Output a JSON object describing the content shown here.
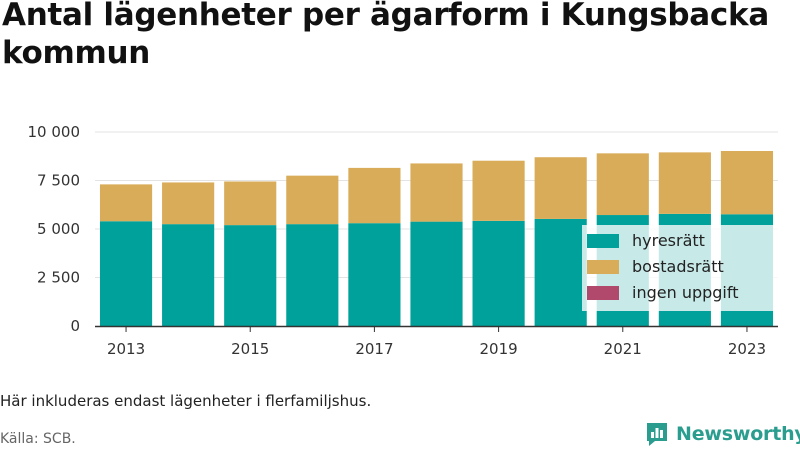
{
  "title": "Antal lägenheter per ägarform i Kungsbacka kommun",
  "note": "Här inkluderas endast lägenheter i flerfamiljshus.",
  "source": "Källa: SCB.",
  "logo": {
    "text": "Newsworthy",
    "icon": "bar-chart-logo-icon"
  },
  "colors": {
    "hyresratt": "#00a19a",
    "bostadsratt": "#d9ac5a",
    "ingen_uppgift": "#b0496c",
    "legend_bg": "#ffffff",
    "brand": "#2a9d8f"
  },
  "chart_data": {
    "type": "bar",
    "stacked": true,
    "categories": [
      "2013",
      "2014",
      "2015",
      "2016",
      "2017",
      "2018",
      "2019",
      "2020",
      "2021",
      "2022",
      "2023"
    ],
    "x_tick_labels": [
      "2013",
      "2015",
      "2017",
      "2019",
      "2021",
      "2023"
    ],
    "y_tick_labels": [
      "0",
      "2 500",
      "5 000",
      "7 500",
      "10 000"
    ],
    "y_ticks": [
      0,
      2500,
      5000,
      7500,
      10000
    ],
    "ylim": [
      0,
      10000
    ],
    "grid": true,
    "legend_position": "bottom-right",
    "series": [
      {
        "name": "hyresrätt",
        "color_key": "hyresratt",
        "values": [
          5400,
          5250,
          5200,
          5250,
          5300,
          5380,
          5420,
          5520,
          5720,
          5780,
          5760
        ]
      },
      {
        "name": "bostadsrätt",
        "color_key": "bostadsratt",
        "values": [
          1900,
          2150,
          2250,
          2500,
          2850,
          3000,
          3100,
          3180,
          3180,
          3170,
          3260
        ]
      },
      {
        "name": "ingen uppgift",
        "color_key": "ingen_uppgift",
        "values": [
          0,
          0,
          0,
          0,
          0,
          0,
          0,
          0,
          0,
          0,
          0
        ]
      }
    ]
  }
}
